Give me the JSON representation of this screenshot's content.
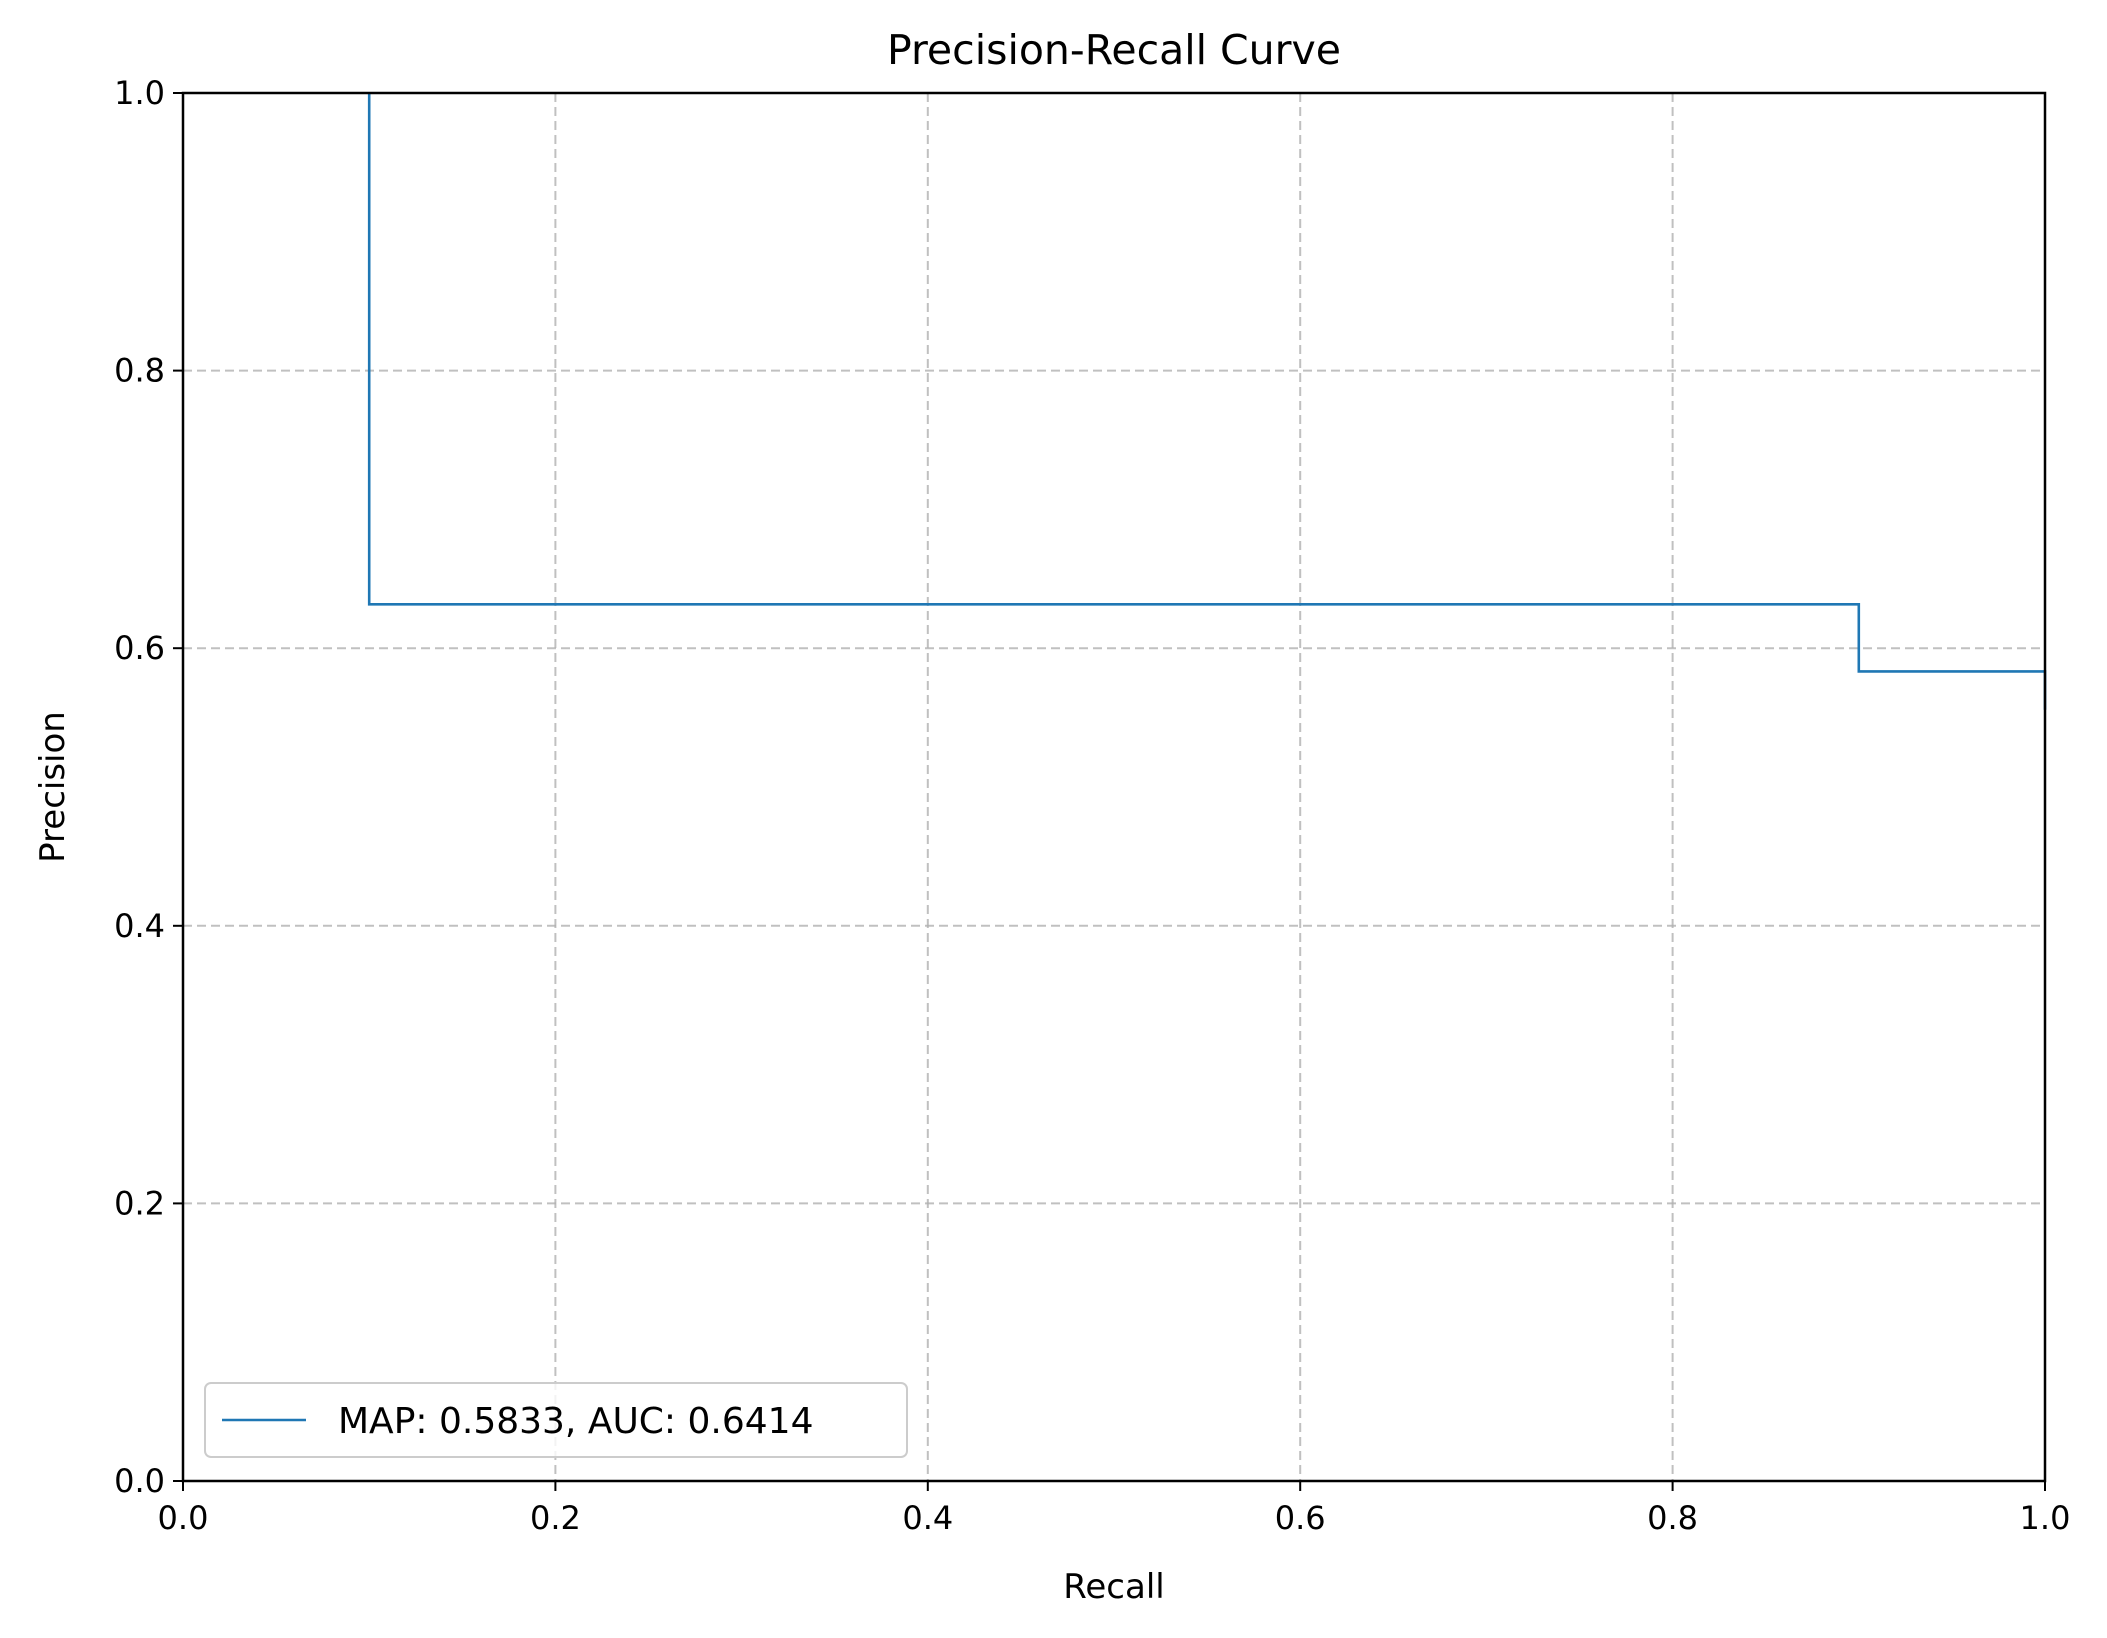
{
  "chart_data": {
    "type": "line",
    "title": "Precision-Recall Curve",
    "xlabel": "Recall",
    "ylabel": "Precision",
    "xlim": [
      0.0,
      1.0
    ],
    "ylim": [
      0.0,
      1.0
    ],
    "xticks": [
      "0.0",
      "0.2",
      "0.4",
      "0.6",
      "0.8",
      "1.0"
    ],
    "yticks": [
      "0.0",
      "0.2",
      "0.4",
      "0.6",
      "0.8",
      "1.0"
    ],
    "grid": true,
    "grid_style": "dashed",
    "legend_position": "lower-left",
    "step": "post",
    "series": [
      {
        "name": "MAP: 0.5833, AUC: 0.6414",
        "color": "#1f77b4",
        "x": [
          0.1,
          0.1,
          0.9,
          0.9,
          1.0,
          1.0
        ],
        "y": [
          1.0,
          0.6316,
          0.6316,
          0.5833,
          0.5833,
          0.5556
        ]
      }
    ]
  }
}
